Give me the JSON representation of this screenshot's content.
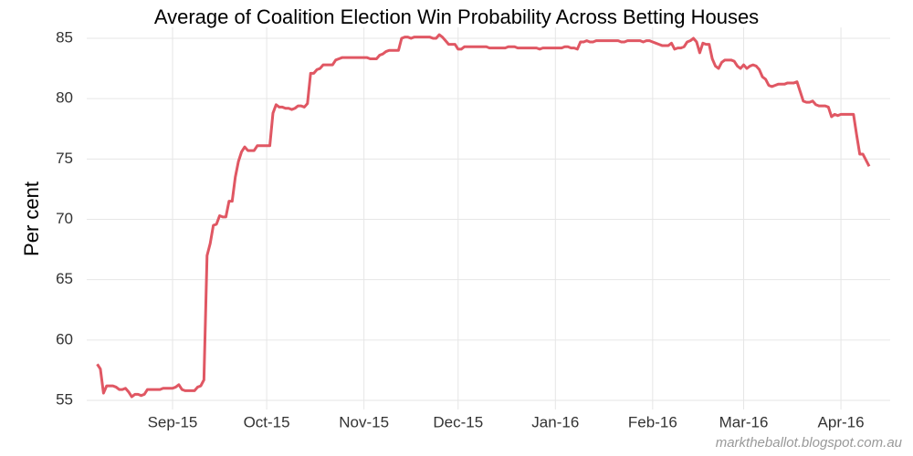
{
  "chart_data": {
    "type": "line",
    "title": "Average of Coalition Election Win Probability Across Betting Houses",
    "y_label": "Per cent",
    "source": "marktheballot.blogspot.com.au",
    "color": "#e05763",
    "grid": true,
    "ylim": [
      55,
      85
    ],
    "yticks": [
      55,
      60,
      65,
      70,
      75,
      80,
      85
    ],
    "categories": [
      null,
      null,
      null,
      null,
      null,
      null,
      null,
      null,
      null,
      null,
      null,
      null,
      null,
      null,
      null,
      null,
      null,
      null,
      null,
      null,
      null,
      null,
      null,
      null,
      "Sep-15",
      null,
      null,
      null,
      null,
      null,
      null,
      null,
      null,
      null,
      null,
      null,
      null,
      null,
      null,
      null,
      null,
      null,
      null,
      null,
      null,
      null,
      null,
      null,
      null,
      null,
      null,
      null,
      null,
      null,
      "Oct-15",
      null,
      null,
      null,
      null,
      null,
      null,
      null,
      null,
      null,
      null,
      null,
      null,
      null,
      null,
      null,
      null,
      null,
      null,
      null,
      null,
      null,
      null,
      null,
      null,
      null,
      null,
      null,
      null,
      null,
      null,
      "Nov-15",
      null,
      null,
      null,
      null,
      null,
      null,
      null,
      null,
      null,
      null,
      null,
      null,
      null,
      null,
      null,
      null,
      null,
      null,
      null,
      null,
      null,
      null,
      null,
      null,
      null,
      null,
      null,
      null,
      null,
      "Dec-15",
      null,
      null,
      null,
      null,
      null,
      null,
      null,
      null,
      null,
      null,
      null,
      null,
      null,
      null,
      null,
      null,
      null,
      null,
      null,
      null,
      null,
      null,
      null,
      null,
      null,
      null,
      null,
      null,
      null,
      null,
      "Jan-16",
      null,
      null,
      null,
      null,
      null,
      null,
      null,
      null,
      null,
      null,
      null,
      null,
      null,
      null,
      null,
      null,
      null,
      null,
      null,
      null,
      null,
      null,
      null,
      null,
      null,
      null,
      null,
      null,
      null,
      null,
      "Feb-16",
      null,
      null,
      null,
      null,
      null,
      null,
      null,
      null,
      null,
      null,
      null,
      null,
      null,
      null,
      null,
      null,
      null,
      null,
      null,
      null,
      null,
      null,
      null,
      null,
      null,
      null,
      null,
      null,
      "Mar-16",
      null,
      null,
      null,
      null,
      null,
      null,
      null,
      null,
      null,
      null,
      null,
      null,
      null,
      null,
      null,
      null,
      null,
      null,
      null,
      null,
      null,
      null,
      null,
      null,
      null,
      null,
      null,
      null,
      null,
      null,
      "Apr-16",
      null,
      null,
      null,
      null,
      null,
      null,
      null,
      null,
      null
    ],
    "values": [
      58.0,
      57.6,
      55.6,
      56.2,
      56.2,
      56.2,
      56.1,
      55.9,
      55.9,
      56.0,
      55.7,
      55.3,
      55.5,
      55.5,
      55.4,
      55.5,
      55.9,
      55.9,
      55.9,
      55.9,
      55.9,
      56.0,
      56.0,
      56.0,
      56.0,
      56.1,
      56.3,
      55.9,
      55.8,
      55.8,
      55.8,
      55.8,
      56.1,
      56.2,
      56.7,
      67.0,
      68.0,
      69.5,
      69.6,
      70.3,
      70.2,
      70.2,
      71.5,
      71.5,
      73.5,
      74.8,
      75.6,
      76.0,
      75.7,
      75.7,
      75.7,
      76.1,
      76.1,
      76.1,
      76.1,
      76.1,
      78.8,
      79.5,
      79.3,
      79.3,
      79.2,
      79.2,
      79.1,
      79.2,
      79.4,
      79.4,
      79.3,
      79.6,
      82.1,
      82.1,
      82.4,
      82.5,
      82.8,
      82.8,
      82.8,
      82.8,
      83.2,
      83.3,
      83.4,
      83.4,
      83.4,
      83.4,
      83.4,
      83.4,
      83.4,
      83.4,
      83.4,
      83.3,
      83.3,
      83.3,
      83.6,
      83.7,
      83.9,
      84.0,
      84.0,
      84.0,
      84.0,
      85.0,
      85.1,
      85.1,
      85.0,
      85.1,
      85.1,
      85.1,
      85.1,
      85.1,
      85.1,
      85.0,
      85.0,
      85.3,
      85.1,
      84.8,
      84.5,
      84.5,
      84.5,
      84.1,
      84.1,
      84.3,
      84.3,
      84.3,
      84.3,
      84.3,
      84.3,
      84.3,
      84.3,
      84.2,
      84.2,
      84.2,
      84.2,
      84.2,
      84.2,
      84.3,
      84.3,
      84.3,
      84.2,
      84.2,
      84.2,
      84.2,
      84.2,
      84.2,
      84.2,
      84.1,
      84.2,
      84.2,
      84.2,
      84.2,
      84.2,
      84.2,
      84.2,
      84.3,
      84.3,
      84.2,
      84.2,
      84.1,
      84.7,
      84.7,
      84.8,
      84.7,
      84.7,
      84.8,
      84.8,
      84.8,
      84.8,
      84.8,
      84.8,
      84.8,
      84.8,
      84.7,
      84.7,
      84.8,
      84.8,
      84.8,
      84.8,
      84.8,
      84.7,
      84.8,
      84.8,
      84.7,
      84.6,
      84.5,
      84.4,
      84.4,
      84.4,
      84.6,
      84.1,
      84.2,
      84.2,
      84.3,
      84.7,
      84.8,
      85.0,
      84.7,
      83.8,
      84.6,
      84.5,
      84.5,
      83.3,
      82.7,
      82.5,
      83.0,
      83.2,
      83.2,
      83.2,
      83.1,
      82.7,
      82.5,
      82.8,
      82.5,
      82.7,
      82.8,
      82.7,
      82.4,
      81.8,
      81.6,
      81.1,
      81.0,
      81.1,
      81.2,
      81.2,
      81.2,
      81.3,
      81.3,
      81.3,
      81.4,
      80.6,
      79.8,
      79.7,
      79.7,
      79.8,
      79.5,
      79.4,
      79.4,
      79.4,
      79.3,
      78.5,
      78.7,
      78.6,
      78.7,
      78.7,
      78.7,
      78.7,
      78.7,
      77.0,
      75.4,
      75.4,
      74.9,
      74.4
    ]
  }
}
